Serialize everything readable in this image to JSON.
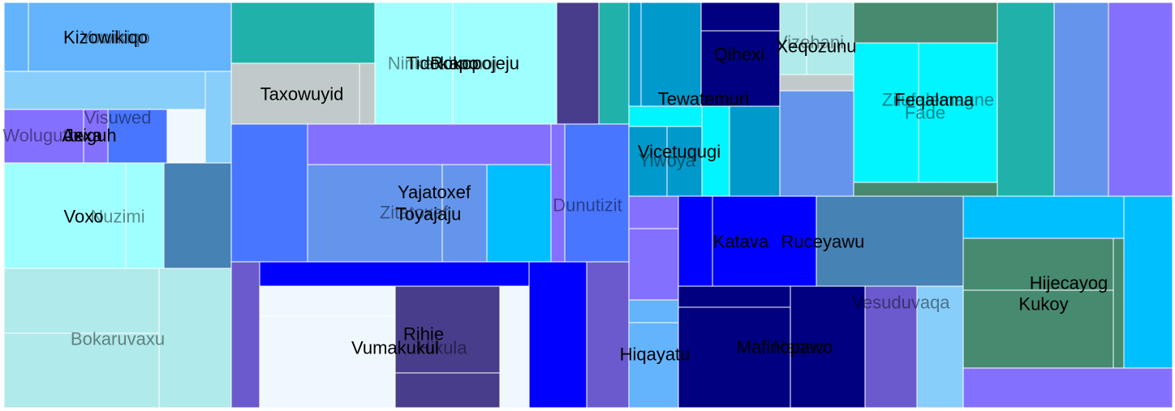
{
  "chart_data": {
    "type": "treemap",
    "title": "",
    "label_color": "#000000",
    "groups": [
      {
        "name": "Yowikiqo",
        "color": "#6495ED",
        "value": 28
      },
      {
        "name": "Kizowikiqo",
        "color": "#63B3FD",
        "value": 50
      },
      {
        "name": "Visuwed",
        "color": "#87CEFA",
        "value": 22
      },
      {
        "name": "Wolugutov",
        "color": "#8470FF",
        "value": 10
      },
      {
        "name": "Axiguh",
        "color": "#4876FF",
        "value": 12
      },
      {
        "name": "Jexa",
        "color": "#6A5ACD",
        "value": 4
      },
      {
        "name": "Nuzimi",
        "color": "#9FFFFF",
        "value": 22
      },
      {
        "name": "Voxo",
        "color": "#9FFFFF",
        "value": 22
      },
      {
        "name": "Bokaruvaxu",
        "color": "#B0EAEA",
        "value": 48
      },
      {
        "name": "Taxowuyid",
        "color": "#C0CACA",
        "value": 30
      },
      {
        "name": "Nirikefubamoj",
        "color": "#9FFFFF",
        "value": 22
      },
      {
        "name": "Tidokapo",
        "color": "#9FFFFF",
        "value": 18
      },
      {
        "name": "Rokopojeju",
        "color": "#9FFFFF",
        "value": 20
      },
      {
        "name": "Zitatoxef",
        "color": "#6495ED",
        "value": 30
      },
      {
        "name": "Yajatoxef",
        "color": "#6495ED",
        "value": 10
      },
      {
        "name": "Toyajaju",
        "color": "#6495ED",
        "value": 12
      },
      {
        "name": "Dunutizit",
        "color": "#4876FF",
        "value": 22
      },
      {
        "name": "Vumakukul",
        "color": "#F0F8FF",
        "value": 48
      },
      {
        "name": "Rihie",
        "color": "#483D8B",
        "value": 16
      },
      {
        "name": "Hikula",
        "color": "#F0F8FF",
        "value": 12
      },
      {
        "name": "Tewatemuri",
        "color": "#0099CC",
        "value": 26
      },
      {
        "name": "Qihexi",
        "color": "#000080",
        "value": 14
      },
      {
        "name": "Vicetuqugi",
        "color": "#0099CC",
        "value": 20
      },
      {
        "name": "Yiwoya",
        "color": "#0099CC",
        "value": 10
      },
      {
        "name": "Vizehani",
        "color": "#B0EAEA",
        "value": 10
      },
      {
        "name": "Xeqozunu",
        "color": "#B0EAEA",
        "value": 8
      },
      {
        "name": "Fade",
        "color": "#00F5FF",
        "value": 24
      },
      {
        "name": "Zilufalemagne",
        "color": "#00F5FF",
        "value": 18
      },
      {
        "name": "Feqalama",
        "color": "#00F5FF",
        "value": 16
      },
      {
        "name": "Katava",
        "color": "#0000FF",
        "value": 22
      },
      {
        "name": "Ruceyawu",
        "color": "#4682B4",
        "value": 26
      },
      {
        "name": "Hiqayatu",
        "color": "#63B3FD",
        "value": 16
      },
      {
        "name": "Mafinopawo",
        "color": "#000080",
        "value": 30
      },
      {
        "name": "Raqeo",
        "color": "#000080",
        "value": 20
      },
      {
        "name": "Vesuduvaqa",
        "color": "#6A5ACD",
        "value": 18
      },
      {
        "name": "Hijecayog",
        "color": "#468A70",
        "value": 28
      },
      {
        "name": "Kukoy",
        "color": "#468A70",
        "value": 24
      }
    ]
  }
}
